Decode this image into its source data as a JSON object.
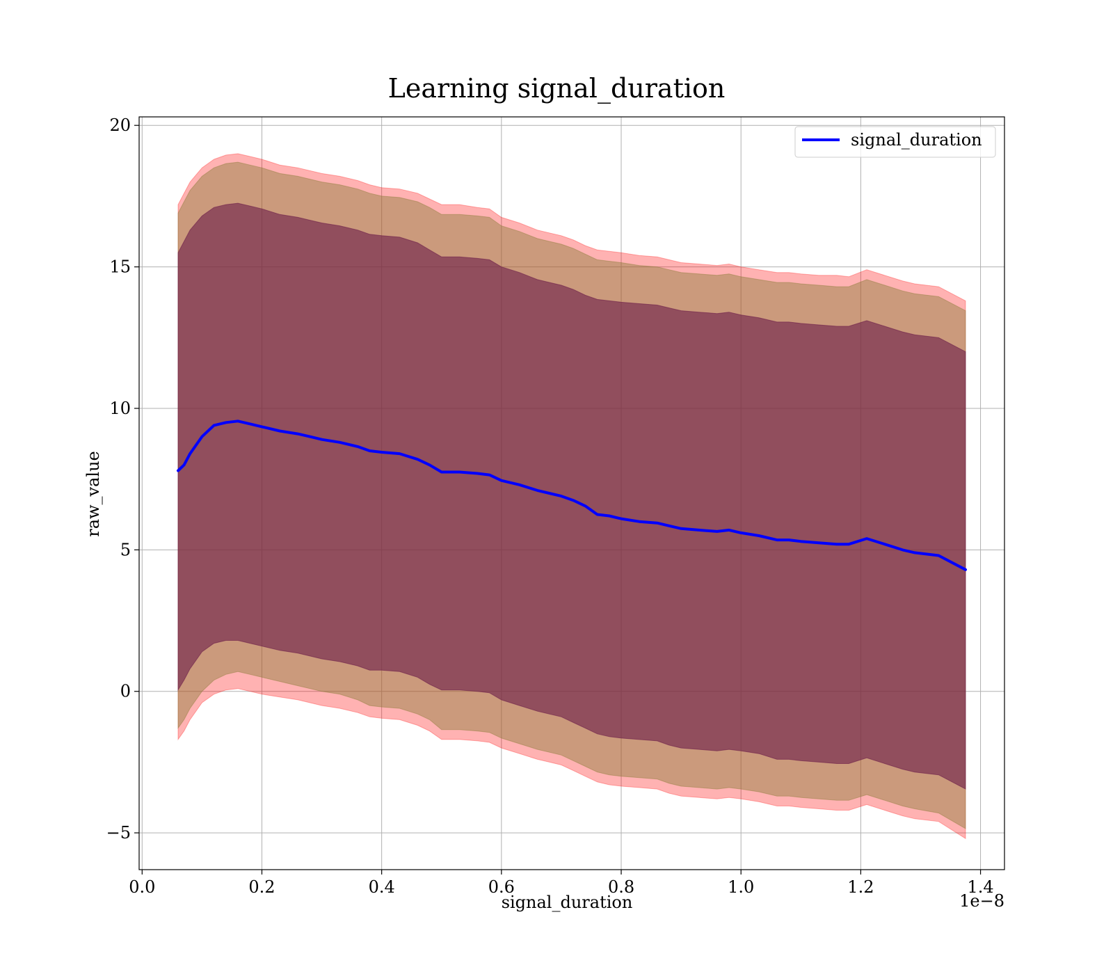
{
  "chart_data": {
    "type": "area",
    "title": "Learning signal_duration",
    "xlabel": "signal_duration",
    "ylabel": "raw_value",
    "x_offset_label": "1e−8",
    "xlim": [
      -0.005,
      1.44
    ],
    "ylim": [
      -6.3,
      20.3
    ],
    "x_ticks": [
      0.0,
      0.2,
      0.4,
      0.6,
      0.8,
      1.0,
      1.2,
      1.4
    ],
    "x_tick_labels": [
      "0.0",
      "0.2",
      "0.4",
      "0.6",
      "0.8",
      "1.0",
      "1.2",
      "1.4"
    ],
    "y_ticks": [
      -5,
      0,
      5,
      10,
      15,
      20
    ],
    "y_tick_labels": [
      "−5",
      "0",
      "5",
      "10",
      "15",
      "20"
    ],
    "grid": true,
    "legend_position": "upper right",
    "x": [
      0.06,
      0.07,
      0.08,
      0.1,
      0.12,
      0.14,
      0.16,
      0.18,
      0.2,
      0.23,
      0.26,
      0.28,
      0.3,
      0.33,
      0.36,
      0.38,
      0.4,
      0.43,
      0.46,
      0.48,
      0.5,
      0.53,
      0.56,
      0.58,
      0.6,
      0.63,
      0.66,
      0.68,
      0.7,
      0.72,
      0.74,
      0.76,
      0.78,
      0.8,
      0.83,
      0.86,
      0.88,
      0.9,
      0.93,
      0.96,
      0.98,
      1.0,
      1.03,
      1.06,
      1.08,
      1.1,
      1.13,
      1.16,
      1.18,
      1.21,
      1.24,
      1.27,
      1.29,
      1.33,
      1.375
    ],
    "series": [
      {
        "name": "signal_duration",
        "color": "#0000ff",
        "values": [
          7.8,
          8.0,
          8.4,
          9.0,
          9.4,
          9.5,
          9.55,
          9.45,
          9.35,
          9.2,
          9.1,
          9.0,
          8.9,
          8.8,
          8.65,
          8.5,
          8.45,
          8.4,
          8.2,
          8.0,
          7.75,
          7.75,
          7.7,
          7.65,
          7.45,
          7.3,
          7.1,
          7.0,
          6.9,
          6.75,
          6.55,
          6.25,
          6.2,
          6.1,
          6.0,
          5.95,
          5.85,
          5.75,
          5.7,
          5.65,
          5.7,
          5.6,
          5.5,
          5.35,
          5.35,
          5.3,
          5.25,
          5.2,
          5.2,
          5.4,
          5.2,
          5.0,
          4.9,
          4.8,
          4.3
        ]
      }
    ],
    "bands": [
      {
        "kind": "3-sigma",
        "fill": "#ff0000",
        "opacity": 0.3,
        "upper": [
          17.2,
          17.6,
          18.0,
          18.5,
          18.8,
          18.95,
          19.0,
          18.9,
          18.8,
          18.6,
          18.5,
          18.4,
          18.3,
          18.2,
          18.05,
          17.9,
          17.8,
          17.75,
          17.6,
          17.4,
          17.2,
          17.2,
          17.1,
          17.05,
          16.75,
          16.55,
          16.3,
          16.2,
          16.1,
          15.95,
          15.75,
          15.6,
          15.55,
          15.5,
          15.4,
          15.35,
          15.25,
          15.15,
          15.1,
          15.05,
          15.1,
          15.0,
          14.9,
          14.8,
          14.8,
          14.75,
          14.7,
          14.7,
          14.65,
          14.9,
          14.7,
          14.5,
          14.4,
          14.3,
          13.8
        ],
        "lower": [
          -1.7,
          -1.4,
          -1.0,
          -0.4,
          -0.1,
          0.05,
          0.1,
          0.0,
          -0.1,
          -0.2,
          -0.3,
          -0.4,
          -0.5,
          -0.6,
          -0.75,
          -0.9,
          -0.95,
          -1.0,
          -1.2,
          -1.4,
          -1.7,
          -1.7,
          -1.75,
          -1.8,
          -2.0,
          -2.2,
          -2.4,
          -2.5,
          -2.6,
          -2.8,
          -3.0,
          -3.2,
          -3.3,
          -3.35,
          -3.4,
          -3.45,
          -3.6,
          -3.7,
          -3.75,
          -3.8,
          -3.75,
          -3.8,
          -3.9,
          -4.05,
          -4.05,
          -4.1,
          -4.15,
          -4.2,
          -4.2,
          -4.0,
          -4.2,
          -4.4,
          -4.5,
          -4.6,
          -5.2
        ]
      },
      {
        "kind": "2-sigma",
        "fill": "#8b7d3a",
        "opacity": 0.45,
        "upper": [
          16.9,
          17.3,
          17.7,
          18.2,
          18.5,
          18.65,
          18.7,
          18.6,
          18.5,
          18.3,
          18.2,
          18.1,
          18.0,
          17.9,
          17.75,
          17.6,
          17.5,
          17.45,
          17.3,
          17.1,
          16.85,
          16.85,
          16.8,
          16.75,
          16.45,
          16.25,
          16.0,
          15.9,
          15.8,
          15.65,
          15.45,
          15.25,
          15.2,
          15.15,
          15.05,
          15.0,
          14.9,
          14.8,
          14.75,
          14.7,
          14.75,
          14.65,
          14.55,
          14.45,
          14.45,
          14.4,
          14.35,
          14.3,
          14.3,
          14.55,
          14.35,
          14.15,
          14.05,
          13.95,
          13.45
        ],
        "lower": [
          -1.3,
          -1.0,
          -0.6,
          0.0,
          0.4,
          0.6,
          0.7,
          0.6,
          0.5,
          0.35,
          0.2,
          0.1,
          0.0,
          -0.1,
          -0.3,
          -0.5,
          -0.55,
          -0.6,
          -0.8,
          -1.0,
          -1.35,
          -1.35,
          -1.4,
          -1.45,
          -1.65,
          -1.85,
          -2.05,
          -2.15,
          -2.25,
          -2.45,
          -2.65,
          -2.85,
          -2.95,
          -3.0,
          -3.05,
          -3.1,
          -3.25,
          -3.35,
          -3.4,
          -3.45,
          -3.4,
          -3.45,
          -3.55,
          -3.7,
          -3.7,
          -3.75,
          -3.8,
          -3.85,
          -3.85,
          -3.65,
          -3.85,
          -4.05,
          -4.15,
          -4.3,
          -4.85
        ]
      },
      {
        "kind": "1-sigma",
        "fill": "#6b1d4a",
        "opacity": 0.6,
        "upper": [
          15.5,
          15.9,
          16.3,
          16.8,
          17.1,
          17.2,
          17.25,
          17.15,
          17.05,
          16.85,
          16.75,
          16.65,
          16.55,
          16.45,
          16.3,
          16.15,
          16.1,
          16.05,
          15.85,
          15.6,
          15.35,
          15.35,
          15.3,
          15.25,
          15.0,
          14.8,
          14.55,
          14.45,
          14.35,
          14.2,
          14.0,
          13.85,
          13.8,
          13.75,
          13.7,
          13.65,
          13.55,
          13.45,
          13.4,
          13.35,
          13.4,
          13.3,
          13.2,
          13.05,
          13.05,
          13.0,
          12.95,
          12.9,
          12.9,
          13.1,
          12.9,
          12.7,
          12.6,
          12.5,
          12.0
        ],
        "lower": [
          0.05,
          0.4,
          0.8,
          1.4,
          1.7,
          1.8,
          1.8,
          1.7,
          1.6,
          1.45,
          1.35,
          1.25,
          1.15,
          1.05,
          0.9,
          0.75,
          0.75,
          0.7,
          0.5,
          0.25,
          0.05,
          0.05,
          0.0,
          -0.05,
          -0.3,
          -0.5,
          -0.7,
          -0.8,
          -0.9,
          -1.1,
          -1.3,
          -1.5,
          -1.6,
          -1.65,
          -1.7,
          -1.75,
          -1.9,
          -2.0,
          -2.05,
          -2.1,
          -2.05,
          -2.1,
          -2.2,
          -2.4,
          -2.4,
          -2.45,
          -2.5,
          -2.55,
          -2.55,
          -2.35,
          -2.55,
          -2.75,
          -2.85,
          -2.95,
          -3.45
        ]
      }
    ]
  }
}
